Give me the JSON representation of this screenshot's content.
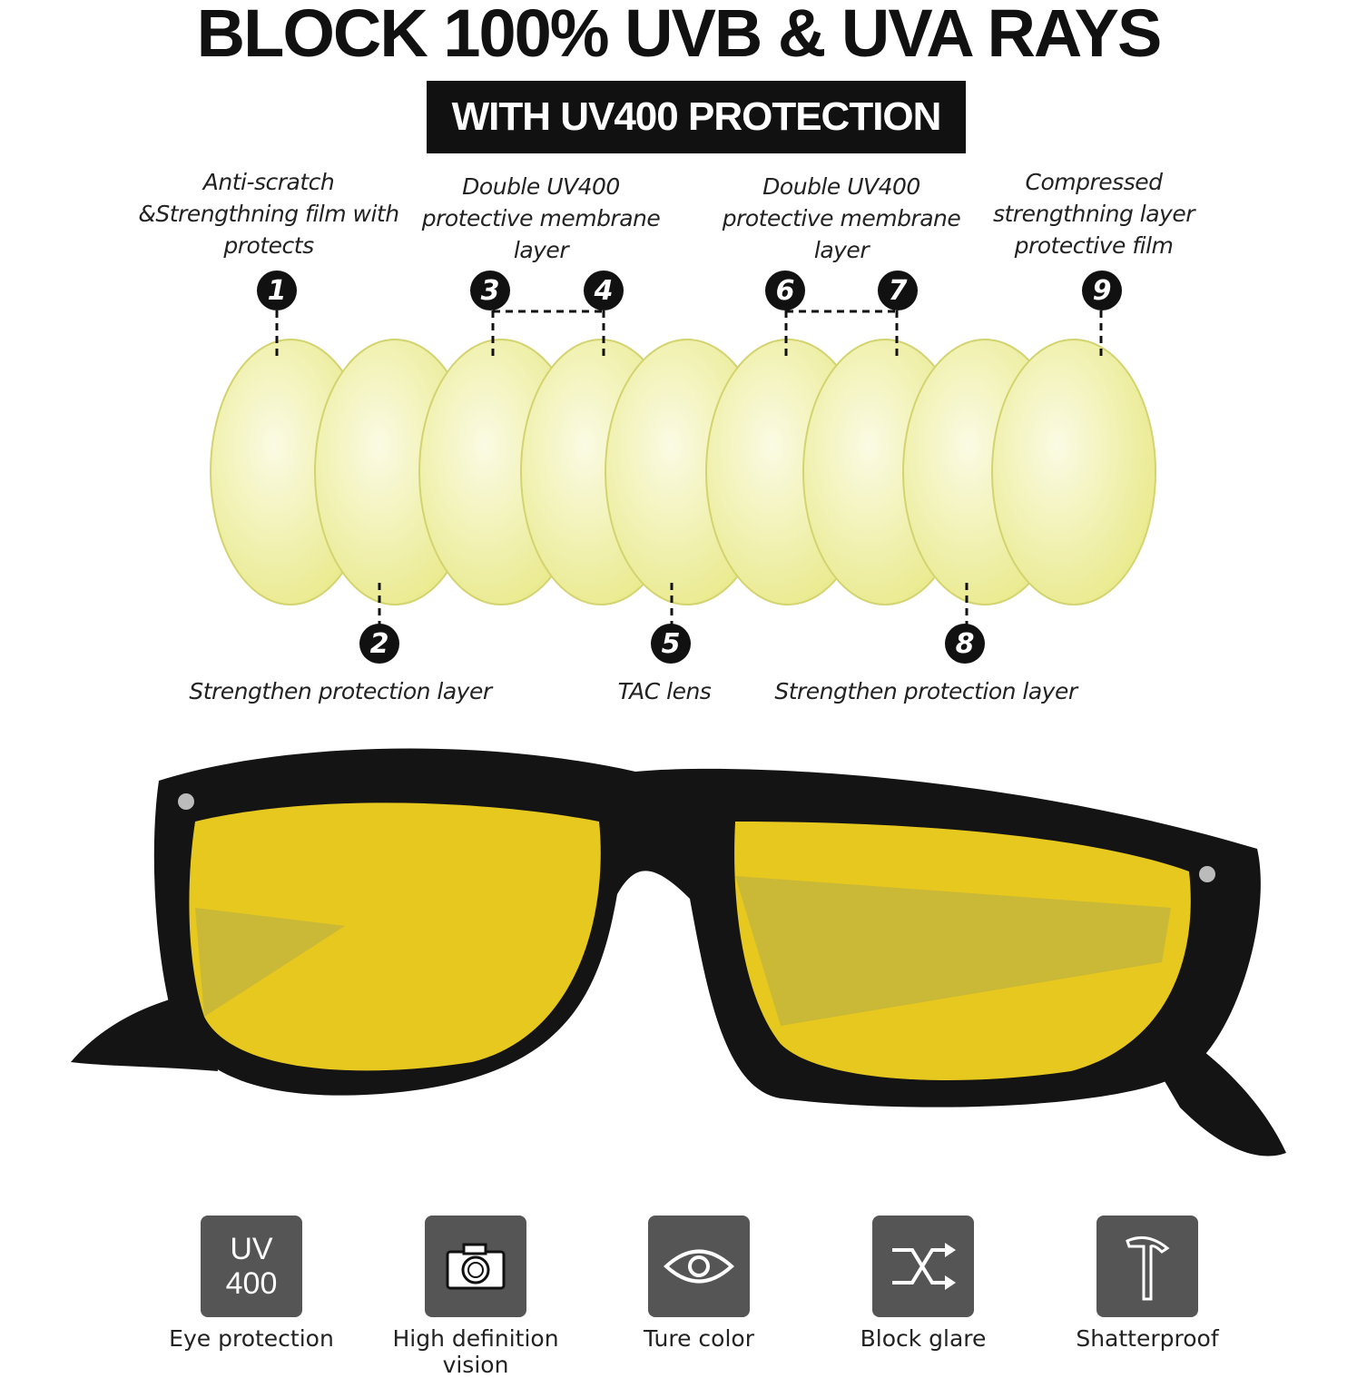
{
  "title": "BLOCK 100% UVB & UVA RAYS",
  "banner": "WITH UV400 PROTECTION",
  "top_labels": [
    {
      "num": "1",
      "text": "Anti-scratch &Strengthning film with protects"
    },
    {
      "num": "3-4",
      "text": "Double UV400 protective membrane  layer"
    },
    {
      "num": "6-7",
      "text": "Double UV400 protective membrane  layer"
    },
    {
      "num": "9",
      "text": "Compressed strengthning layer protective film"
    }
  ],
  "bottom_labels": [
    {
      "num": "2",
      "text": "Strengthen protection layer"
    },
    {
      "num": "5",
      "text": "TAC lens"
    },
    {
      "num": "8",
      "text": "Strengthen protection layer"
    }
  ],
  "numbers": [
    "1",
    "2",
    "3",
    "4",
    "5",
    "6",
    "7",
    "8",
    "9"
  ],
  "features": [
    {
      "icon": "uv400-icon",
      "icon_text": [
        "UV",
        "400"
      ],
      "label": "Eye protection"
    },
    {
      "icon": "camera-icon",
      "label": "High definition vision"
    },
    {
      "icon": "eye-icon",
      "label": "Ture color"
    },
    {
      "icon": "shuffle-icon",
      "label": "Block glare"
    },
    {
      "icon": "hammer-icon",
      "label": "Shatterproof"
    }
  ],
  "colors": {
    "lens": "#e9ea7c",
    "frame": "#141414",
    "tile": "#555555",
    "lens_glasses": "#e5c61a"
  }
}
